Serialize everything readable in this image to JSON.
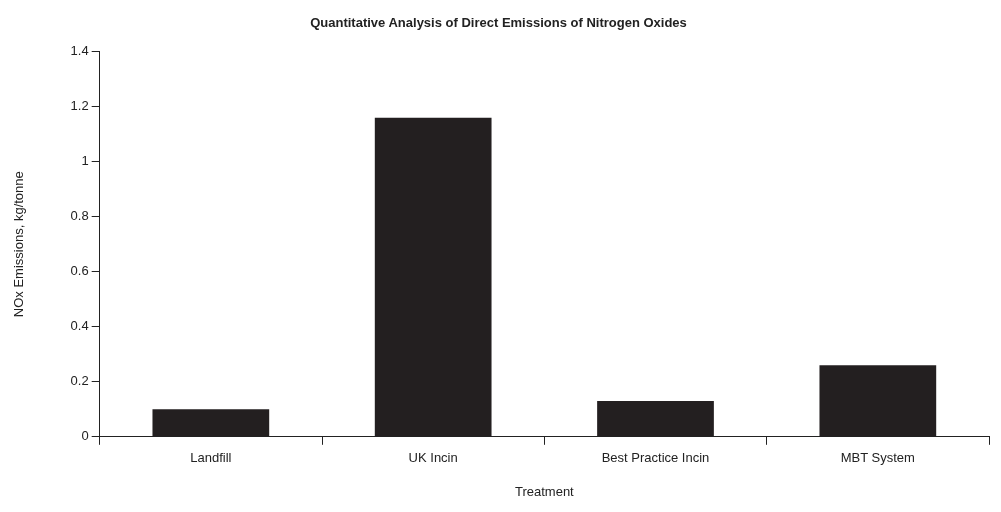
{
  "chart_data": {
    "type": "bar",
    "title": "Quantitative Analysis of Direct Emissions of Nitrogen Oxides",
    "xlabel": "Treatment",
    "ylabel": "NOx Emissions, kg/tonne",
    "categories": [
      "Landfill",
      "UK Incin",
      "Best Practice Incin",
      "MBT System"
    ],
    "values": [
      0.1,
      1.16,
      0.13,
      0.26
    ],
    "color": "#231f20",
    "ylim": [
      0,
      1.4
    ],
    "yticks": [
      0,
      0.2,
      0.4,
      0.6,
      0.8,
      1,
      1.2,
      1.4
    ],
    "grid": false,
    "legend": false
  }
}
